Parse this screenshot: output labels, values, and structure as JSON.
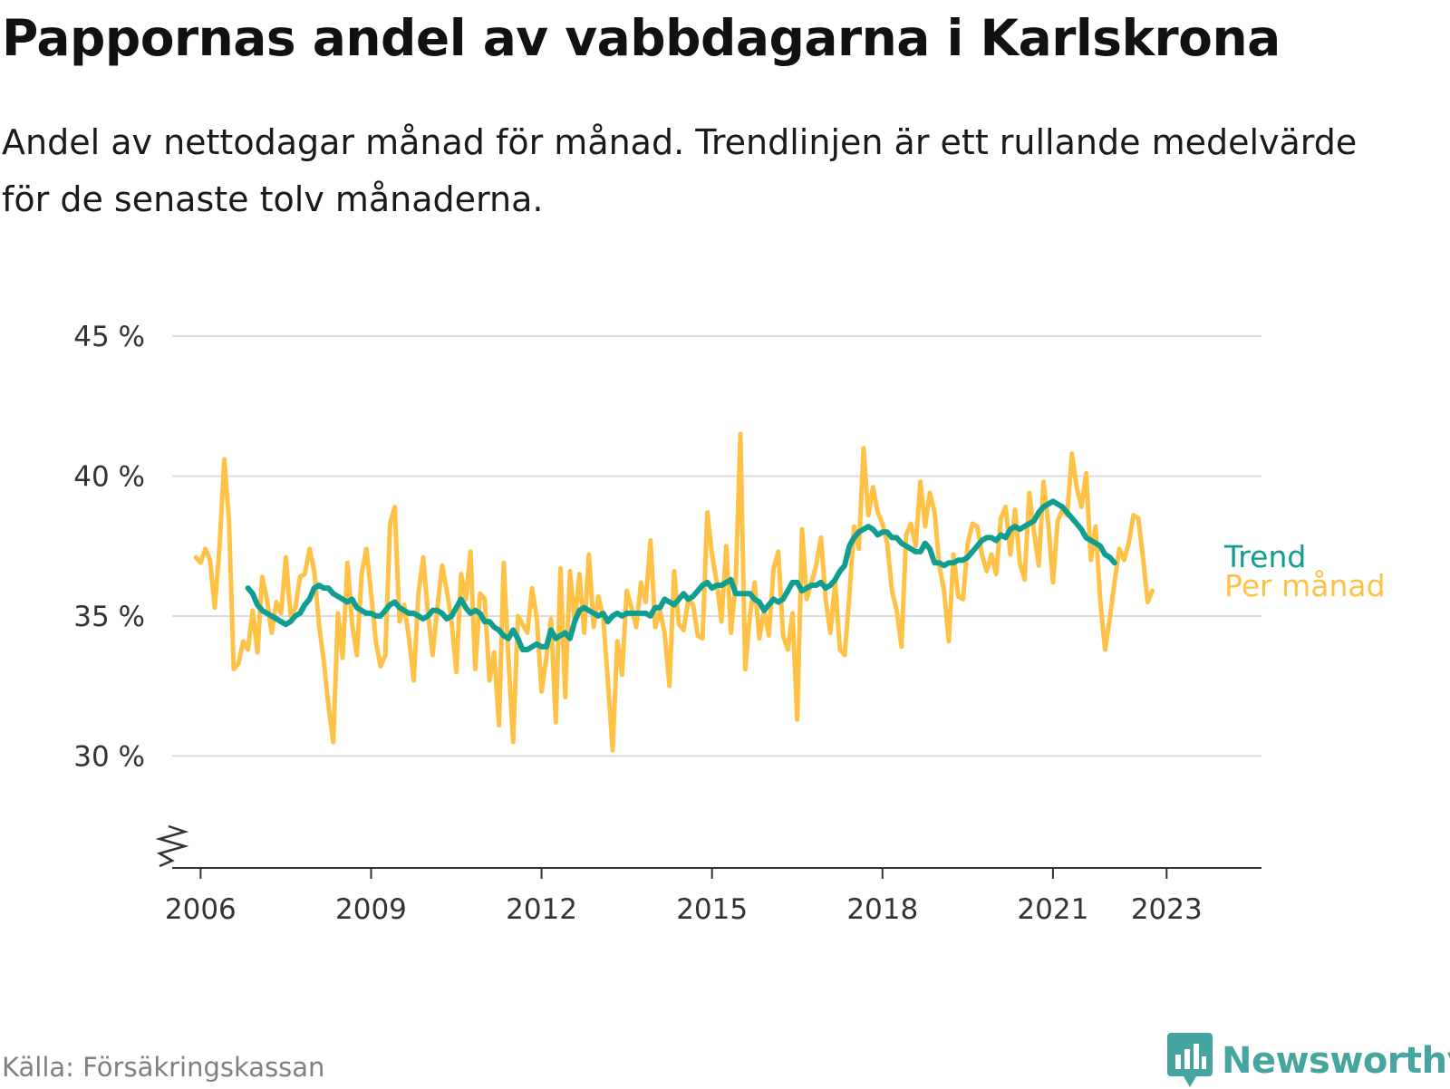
{
  "title": "Pappornas andel av vabbdagarna i Karlskrona",
  "subtitle": "Andel av nettodagar månad för månad. Trendlinjen är ett rullande medelvärde för de senaste tolv månaderna.",
  "source": "Källa: Försäkringskassan",
  "brand": "Newsworthy",
  "colors": {
    "trend": "#0f9e90",
    "monthly": "#ffc247",
    "grid": "#dddddd",
    "axis": "#333333",
    "brand": "#46a5a0"
  },
  "chart_data": {
    "type": "line",
    "title": "Pappornas andel av vabbdagarna i Karlskrona",
    "xlabel": "",
    "ylabel": "",
    "ylim": [
      26,
      45
    ],
    "yticks": [
      30,
      35,
      40,
      45
    ],
    "ytick_labels": [
      "30 %",
      "35 %",
      "40 %",
      "45 %"
    ],
    "xlim": [
      2005.5,
      2024.67
    ],
    "xticks": [
      2006,
      2009,
      2012,
      2015,
      2018,
      2021,
      2023
    ],
    "xtick_labels": [
      "2006",
      "2009",
      "2012",
      "2015",
      "2018",
      "2021",
      "2023"
    ],
    "grid": true,
    "axis_break": true,
    "series": [
      {
        "name": "Per månad",
        "x_start": 2005.917,
        "step": 0.0833333,
        "values": [
          37.1,
          36.9,
          37.4,
          37.0,
          35.3,
          37.5,
          40.6,
          38.4,
          33.1,
          33.3,
          34.1,
          33.8,
          35.2,
          33.7,
          36.4,
          35.6,
          34.4,
          35.5,
          35.1,
          37.1,
          35.0,
          35.3,
          36.4,
          36.5,
          37.4,
          36.6,
          34.7,
          33.4,
          31.8,
          30.5,
          35.1,
          33.5,
          36.9,
          34.7,
          33.6,
          36.5,
          37.4,
          35.8,
          34.1,
          33.2,
          33.6,
          38.3,
          38.9,
          34.8,
          35.4,
          34.2,
          32.7,
          35.8,
          37.1,
          35.1,
          33.6,
          35.3,
          36.8,
          35.9,
          34.8,
          33.0,
          36.5,
          35.6,
          37.3,
          33.1,
          35.8,
          35.6,
          32.7,
          33.7,
          31.1,
          36.9,
          33.5,
          30.5,
          35.0,
          34.7,
          34.4,
          36.0,
          34.9,
          32.3,
          33.5,
          34.9,
          31.2,
          36.7,
          32.1,
          36.6,
          34.8,
          36.5,
          34.4,
          37.2,
          34.6,
          35.7,
          35.0,
          32.7,
          30.2,
          34.1,
          32.9,
          35.9,
          35.3,
          34.6,
          36.2,
          35.5,
          37.7,
          34.6,
          35.2,
          34.4,
          32.5,
          36.6,
          34.7,
          34.5,
          35.6,
          35.4,
          34.3,
          34.2,
          38.7,
          37.2,
          36.2,
          34.8,
          37.5,
          34.4,
          36.2,
          41.5,
          33.1,
          35.0,
          36.2,
          34.2,
          35.2,
          34.3,
          36.7,
          37.3,
          34.3,
          33.8,
          35.1,
          31.3,
          38.1,
          35.6,
          36.2,
          36.8,
          37.8,
          35.6,
          34.4,
          36.2,
          33.8,
          33.6,
          35.7,
          38.2,
          37.4,
          41.0,
          38.6,
          39.6,
          38.7,
          38.3,
          37.6,
          35.9,
          35.2,
          33.9,
          37.9,
          38.3,
          37.5,
          39.8,
          38.2,
          39.4,
          38.7,
          36.8,
          35.9,
          34.1,
          37.2,
          35.7,
          35.6,
          37.6,
          38.3,
          38.2,
          37.2,
          36.6,
          37.2,
          36.5,
          38.5,
          38.9,
          37.2,
          38.8,
          36.9,
          36.3,
          39.4,
          38.0,
          36.8,
          39.8,
          38.3,
          36.2,
          38.4,
          38.8,
          38.6,
          40.8,
          39.6,
          38.9,
          40.1,
          37.0,
          38.2,
          35.5,
          33.8,
          34.9,
          36.2,
          37.4,
          37.0,
          37.6,
          38.6,
          38.5,
          37.1,
          35.5,
          35.9
        ]
      },
      {
        "name": "Trend",
        "x_start": 2006.833,
        "step": 0.0833333,
        "values": [
          36.0,
          35.8,
          35.4,
          35.2,
          35.1,
          35.0,
          34.9,
          34.8,
          34.7,
          34.8,
          35.0,
          35.1,
          35.4,
          35.6,
          36.0,
          36.1,
          36.0,
          36.0,
          35.8,
          35.7,
          35.6,
          35.5,
          35.6,
          35.3,
          35.2,
          35.1,
          35.1,
          35.0,
          35.0,
          35.2,
          35.4,
          35.5,
          35.3,
          35.2,
          35.1,
          35.1,
          35.0,
          34.9,
          35.0,
          35.2,
          35.2,
          35.1,
          34.9,
          35.0,
          35.3,
          35.6,
          35.3,
          35.1,
          35.2,
          35.1,
          34.8,
          34.8,
          34.6,
          34.5,
          34.3,
          34.2,
          34.5,
          34.2,
          33.8,
          33.8,
          33.9,
          34.0,
          33.9,
          33.9,
          34.5,
          34.2,
          34.3,
          34.4,
          34.2,
          34.8,
          35.2,
          35.3,
          35.2,
          35.1,
          35.0,
          35.1,
          34.8,
          35.0,
          35.1,
          35.0,
          35.1,
          35.1,
          35.1,
          35.1,
          35.1,
          35.0,
          35.3,
          35.3,
          35.6,
          35.5,
          35.4,
          35.6,
          35.8,
          35.6,
          35.7,
          35.9,
          36.1,
          36.2,
          36.0,
          36.1,
          36.1,
          36.2,
          36.3,
          35.8,
          35.8,
          35.8,
          35.8,
          35.6,
          35.5,
          35.2,
          35.4,
          35.6,
          35.5,
          35.6,
          35.9,
          36.2,
          36.2,
          35.9,
          36.0,
          36.1,
          36.1,
          36.2,
          36.0,
          36.1,
          36.3,
          36.6,
          36.8,
          37.5,
          37.8,
          38.0,
          38.1,
          38.2,
          38.1,
          37.9,
          38.0,
          38.0,
          37.8,
          37.8,
          37.6,
          37.5,
          37.4,
          37.3,
          37.3,
          37.6,
          37.4,
          36.9,
          36.9,
          36.8,
          36.9,
          36.9,
          37.0,
          37.0,
          37.1,
          37.3,
          37.5,
          37.7,
          37.8,
          37.8,
          37.7,
          37.9,
          37.8,
          38.1,
          38.2,
          38.1,
          38.2,
          38.3,
          38.4,
          38.7,
          38.9,
          39.0,
          39.1,
          39.0,
          38.9,
          38.7,
          38.5,
          38.3,
          38.1,
          37.8,
          37.7,
          37.6,
          37.5,
          37.2,
          37.1,
          36.9
        ]
      }
    ],
    "legend": [
      {
        "label": "Trend",
        "series": "Trend"
      },
      {
        "label": "Per månad",
        "series": "Per månad"
      }
    ]
  }
}
